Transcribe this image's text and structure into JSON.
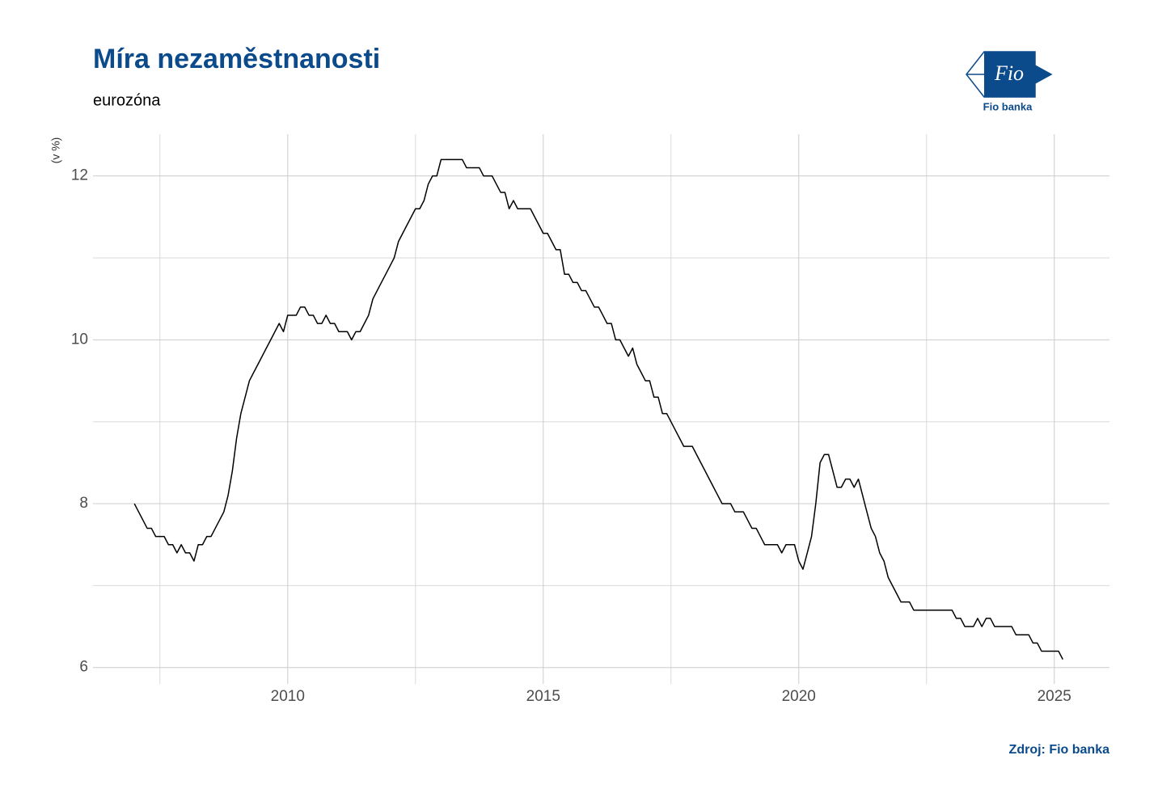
{
  "chart_data": {
    "type": "line",
    "title": "Míra nezaměstnanosti",
    "subtitle": "eurozóna",
    "y_label": "(v %)",
    "source": "Zdroj: Fio banka",
    "logo": {
      "mark": "Fio",
      "caption": "Fio banka"
    },
    "xlim": [
      2006.19,
      2026.08
    ],
    "xticks": [
      2010,
      2015,
      2020,
      2025
    ],
    "x_minor_grid": [
      2007.5,
      2012.5,
      2017.5,
      2022.5
    ],
    "ylim": [
      5.8,
      12.51
    ],
    "yticks": [
      6,
      8,
      10,
      12
    ],
    "y_minor_grid": [
      7,
      9,
      11
    ],
    "grid": true,
    "x": [
      2007.0,
      2007.083,
      2007.167,
      2007.25,
      2007.333,
      2007.417,
      2007.5,
      2007.583,
      2007.667,
      2007.75,
      2007.833,
      2007.917,
      2008.0,
      2008.083,
      2008.167,
      2008.25,
      2008.333,
      2008.417,
      2008.5,
      2008.583,
      2008.667,
      2008.75,
      2008.833,
      2008.917,
      2009.0,
      2009.083,
      2009.167,
      2009.25,
      2009.333,
      2009.417,
      2009.5,
      2009.583,
      2009.667,
      2009.75,
      2009.833,
      2009.917,
      2010.0,
      2010.083,
      2010.167,
      2010.25,
      2010.333,
      2010.417,
      2010.5,
      2010.583,
      2010.667,
      2010.75,
      2010.833,
      2010.917,
      2011.0,
      2011.083,
      2011.167,
      2011.25,
      2011.333,
      2011.417,
      2011.5,
      2011.583,
      2011.667,
      2011.75,
      2011.833,
      2011.917,
      2012.0,
      2012.083,
      2012.167,
      2012.25,
      2012.333,
      2012.417,
      2012.5,
      2012.583,
      2012.667,
      2012.75,
      2012.833,
      2012.917,
      2013.0,
      2013.083,
      2013.167,
      2013.25,
      2013.333,
      2013.417,
      2013.5,
      2013.583,
      2013.667,
      2013.75,
      2013.833,
      2013.917,
      2014.0,
      2014.083,
      2014.167,
      2014.25,
      2014.333,
      2014.417,
      2014.5,
      2014.583,
      2014.667,
      2014.75,
      2014.833,
      2014.917,
      2015.0,
      2015.083,
      2015.167,
      2015.25,
      2015.333,
      2015.417,
      2015.5,
      2015.583,
      2015.667,
      2015.75,
      2015.833,
      2015.917,
      2016.0,
      2016.083,
      2016.167,
      2016.25,
      2016.333,
      2016.417,
      2016.5,
      2016.583,
      2016.667,
      2016.75,
      2016.833,
      2016.917,
      2017.0,
      2017.083,
      2017.167,
      2017.25,
      2017.333,
      2017.417,
      2017.5,
      2017.583,
      2017.667,
      2017.75,
      2017.833,
      2017.917,
      2018.0,
      2018.083,
      2018.167,
      2018.25,
      2018.333,
      2018.417,
      2018.5,
      2018.583,
      2018.667,
      2018.75,
      2018.833,
      2018.917,
      2019.0,
      2019.083,
      2019.167,
      2019.25,
      2019.333,
      2019.417,
      2019.5,
      2019.583,
      2019.667,
      2019.75,
      2019.833,
      2019.917,
      2020.0,
      2020.083,
      2020.167,
      2020.25,
      2020.333,
      2020.417,
      2020.5,
      2020.583,
      2020.667,
      2020.75,
      2020.833,
      2020.917,
      2021.0,
      2021.083,
      2021.167,
      2021.25,
      2021.333,
      2021.417,
      2021.5,
      2021.583,
      2021.667,
      2021.75,
      2021.833,
      2021.917,
      2022.0,
      2022.083,
      2022.167,
      2022.25,
      2022.333,
      2022.417,
      2022.5,
      2022.583,
      2022.667,
      2022.75,
      2022.833,
      2022.917,
      2023.0,
      2023.083,
      2023.167,
      2023.25,
      2023.333,
      2023.417,
      2023.5,
      2023.583,
      2023.667,
      2023.75,
      2023.833,
      2023.917,
      2024.0,
      2024.083,
      2024.167,
      2024.25,
      2024.333,
      2024.417,
      2024.5,
      2024.583,
      2024.667,
      2024.75,
      2024.833,
      2024.917,
      2025.0,
      2025.083,
      2025.167
    ],
    "series": [
      {
        "color": "#000000",
        "values": [
          8.0,
          7.9,
          7.8,
          7.7,
          7.7,
          7.6,
          7.6,
          7.6,
          7.5,
          7.5,
          7.4,
          7.5,
          7.4,
          7.4,
          7.3,
          7.5,
          7.5,
          7.6,
          7.6,
          7.7,
          7.8,
          7.9,
          8.1,
          8.4,
          8.8,
          9.1,
          9.3,
          9.5,
          9.6,
          9.7,
          9.8,
          9.9,
          10.0,
          10.1,
          10.2,
          10.1,
          10.3,
          10.3,
          10.3,
          10.4,
          10.4,
          10.3,
          10.3,
          10.2,
          10.2,
          10.3,
          10.2,
          10.2,
          10.1,
          10.1,
          10.1,
          10.0,
          10.1,
          10.1,
          10.2,
          10.3,
          10.5,
          10.6,
          10.7,
          10.8,
          10.9,
          11.0,
          11.2,
          11.3,
          11.4,
          11.5,
          11.6,
          11.6,
          11.7,
          11.9,
          12.0,
          12.0,
          12.2,
          12.2,
          12.2,
          12.2,
          12.2,
          12.2,
          12.1,
          12.1,
          12.1,
          12.1,
          12.0,
          12.0,
          12.0,
          11.9,
          11.8,
          11.8,
          11.6,
          11.7,
          11.6,
          11.6,
          11.6,
          11.6,
          11.5,
          11.4,
          11.3,
          11.3,
          11.2,
          11.1,
          11.1,
          10.8,
          10.8,
          10.7,
          10.7,
          10.6,
          10.6,
          10.5,
          10.4,
          10.4,
          10.3,
          10.2,
          10.2,
          10.0,
          10.0,
          9.9,
          9.8,
          9.9,
          9.7,
          9.6,
          9.5,
          9.5,
          9.3,
          9.3,
          9.1,
          9.1,
          9.0,
          8.9,
          8.8,
          8.7,
          8.7,
          8.7,
          8.6,
          8.5,
          8.4,
          8.3,
          8.2,
          8.1,
          8.0,
          8.0,
          8.0,
          7.9,
          7.9,
          7.9,
          7.8,
          7.7,
          7.7,
          7.6,
          7.5,
          7.5,
          7.5,
          7.5,
          7.4,
          7.5,
          7.5,
          7.5,
          7.3,
          7.2,
          7.4,
          7.6,
          8.0,
          8.5,
          8.6,
          8.6,
          8.4,
          8.2,
          8.2,
          8.3,
          8.3,
          8.2,
          8.3,
          8.1,
          7.9,
          7.7,
          7.6,
          7.4,
          7.3,
          7.1,
          7.0,
          6.9,
          6.8,
          6.8,
          6.8,
          6.7,
          6.7,
          6.7,
          6.7,
          6.7,
          6.7,
          6.7,
          6.7,
          6.7,
          6.7,
          6.6,
          6.6,
          6.5,
          6.5,
          6.5,
          6.6,
          6.5,
          6.6,
          6.6,
          6.5,
          6.5,
          6.5,
          6.5,
          6.5,
          6.4,
          6.4,
          6.4,
          6.4,
          6.3,
          6.3,
          6.2,
          6.2,
          6.2,
          6.2,
          6.2,
          6.1
        ]
      }
    ]
  }
}
